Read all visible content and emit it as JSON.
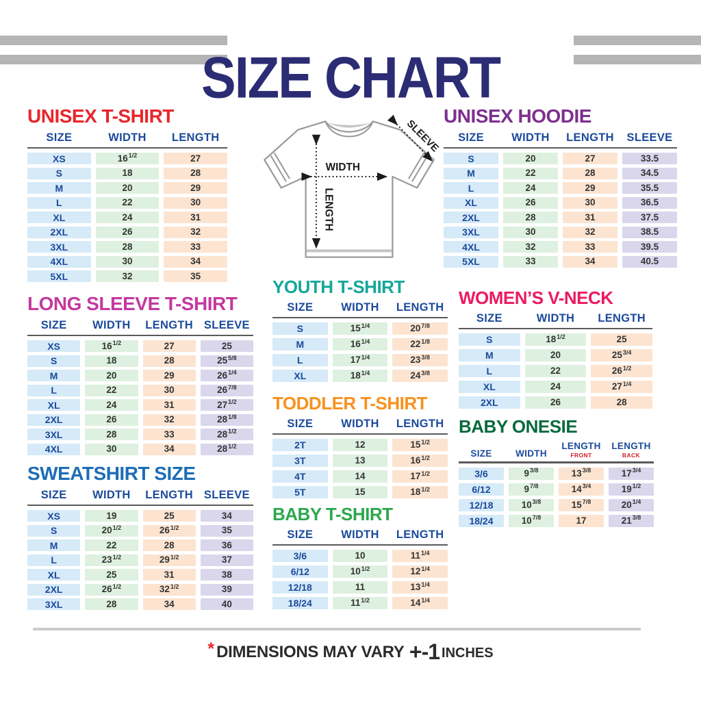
{
  "header": {
    "title": "SIZE CHART",
    "title_color": "#2b2c74",
    "stripe_color": "#b5b5b5"
  },
  "diagram": {
    "width_label": "WIDTH",
    "length_label": "LENGTH",
    "sleeve_label": "SLEEVE"
  },
  "palette": {
    "size": "#d6eaf8",
    "width": "#def0df",
    "length": "#fce4d1",
    "sleeve": "#dad6ec",
    "header_text": "#1b4a9b",
    "value_text": "#333333",
    "sub_header_red": "#d42027"
  },
  "footnote": {
    "asterisk": "*",
    "text": "DIMENSIONS MAY VARY",
    "tolerance": "+-1",
    "unit": "INCHES"
  },
  "tables": [
    {
      "id": "unisex-tshirt",
      "title": "UNISEX T-SHIRT",
      "title_color": "#e8262a",
      "columns": [
        {
          "label": "SIZE",
          "type": "size"
        },
        {
          "label": "WIDTH",
          "type": "width"
        },
        {
          "label": "LENGTH",
          "type": "length"
        }
      ],
      "rows": [
        [
          "XS",
          "16^1/2",
          "27"
        ],
        [
          "S",
          "18",
          "28"
        ],
        [
          "M",
          "20",
          "29"
        ],
        [
          "L",
          "22",
          "30"
        ],
        [
          "XL",
          "24",
          "31"
        ],
        [
          "2XL",
          "26",
          "32"
        ],
        [
          "3XL",
          "28",
          "33"
        ],
        [
          "4XL",
          "30",
          "34"
        ],
        [
          "5XL",
          "32",
          "35"
        ]
      ]
    },
    {
      "id": "unisex-hoodie",
      "title": "UNISEX HOODIE",
      "title_color": "#7d2f8d",
      "columns": [
        {
          "label": "SIZE",
          "type": "size"
        },
        {
          "label": "WIDTH",
          "type": "width"
        },
        {
          "label": "LENGTH",
          "type": "length"
        },
        {
          "label": "SLEEVE",
          "type": "sleeve"
        }
      ],
      "rows": [
        [
          "S",
          "20",
          "27",
          "33.5"
        ],
        [
          "M",
          "22",
          "28",
          "34.5"
        ],
        [
          "L",
          "24",
          "29",
          "35.5"
        ],
        [
          "XL",
          "26",
          "30",
          "36.5"
        ],
        [
          "2XL",
          "28",
          "31",
          "37.5"
        ],
        [
          "3XL",
          "30",
          "32",
          "38.5"
        ],
        [
          "4XL",
          "32",
          "33",
          "39.5"
        ],
        [
          "5XL",
          "33",
          "34",
          "40.5"
        ]
      ]
    },
    {
      "id": "long-sleeve-tshirt",
      "title": "LONG SLEEVE T-SHIRT",
      "title_color": "#c4399f",
      "columns": [
        {
          "label": "SIZE",
          "type": "size"
        },
        {
          "label": "WIDTH",
          "type": "width"
        },
        {
          "label": "LENGTH",
          "type": "length"
        },
        {
          "label": "SLEEVE",
          "type": "sleeve"
        }
      ],
      "rows": [
        [
          "XS",
          "16^1/2",
          "27",
          "25"
        ],
        [
          "S",
          "18",
          "28",
          "25^5/8"
        ],
        [
          "M",
          "20",
          "29",
          "26^1/4"
        ],
        [
          "L",
          "22",
          "30",
          "26^7/8"
        ],
        [
          "XL",
          "24",
          "31",
          "27^1/2"
        ],
        [
          "2XL",
          "26",
          "32",
          "28^1/8"
        ],
        [
          "3XL",
          "28",
          "33",
          "28^1/2"
        ],
        [
          "4XL",
          "30",
          "34",
          "28^1/2"
        ]
      ]
    },
    {
      "id": "youth-tshirt",
      "title": "YOUTH T-SHIRT",
      "title_color": "#16a79a",
      "columns": [
        {
          "label": "SIZE",
          "type": "size"
        },
        {
          "label": "WIDTH",
          "type": "width"
        },
        {
          "label": "LENGTH",
          "type": "length"
        }
      ],
      "rows": [
        [
          "S",
          "15^1/4",
          "20^7/8"
        ],
        [
          "M",
          "16^1/4",
          "22^1/8"
        ],
        [
          "L",
          "17^1/4",
          "23^3/8"
        ],
        [
          "XL",
          "18^1/4",
          "24^3/8"
        ]
      ]
    },
    {
      "id": "womens-vneck",
      "title": "WOMEN’S V-NECK",
      "title_color": "#ec1a62",
      "columns": [
        {
          "label": "SIZE",
          "type": "size"
        },
        {
          "label": "WIDTH",
          "type": "width"
        },
        {
          "label": "LENGTH",
          "type": "length"
        }
      ],
      "rows": [
        [
          "S",
          "18^1/2",
          "25"
        ],
        [
          "M",
          "20",
          "25^3/4"
        ],
        [
          "L",
          "22",
          "26^1/2"
        ],
        [
          "XL",
          "24",
          "27^1/4"
        ],
        [
          "2XL",
          "26",
          "28"
        ]
      ]
    },
    {
      "id": "toddler-tshirt",
      "title": "TODDLER T-SHIRT",
      "title_color": "#f6921e",
      "columns": [
        {
          "label": "SIZE",
          "type": "size"
        },
        {
          "label": "WIDTH",
          "type": "width"
        },
        {
          "label": "LENGTH",
          "type": "length"
        }
      ],
      "rows": [
        [
          "2T",
          "12",
          "15^1/2"
        ],
        [
          "3T",
          "13",
          "16^1/2"
        ],
        [
          "4T",
          "14",
          "17^1/2"
        ],
        [
          "5T",
          "15",
          "18^1/2"
        ]
      ]
    },
    {
      "id": "sweatshirt",
      "title": "SWEATSHIRT SIZE",
      "title_color": "#1d6db6",
      "columns": [
        {
          "label": "SIZE",
          "type": "size"
        },
        {
          "label": "WIDTH",
          "type": "width"
        },
        {
          "label": "LENGTH",
          "type": "length"
        },
        {
          "label": "SLEEVE",
          "type": "sleeve"
        }
      ],
      "rows": [
        [
          "XS",
          "19",
          "25",
          "34"
        ],
        [
          "S",
          "20^1/2",
          "26^1/2",
          "35"
        ],
        [
          "M",
          "22",
          "28",
          "36"
        ],
        [
          "L",
          "23^1/2",
          "29^1/2",
          "37"
        ],
        [
          "XL",
          "25",
          "31",
          "38"
        ],
        [
          "2XL",
          "26^1/2",
          "32^1/2",
          "39"
        ],
        [
          "3XL",
          "28",
          "34",
          "40"
        ]
      ]
    },
    {
      "id": "baby-tshirt",
      "title": "BABY T-SHIRT",
      "title_color": "#2ca84d",
      "columns": [
        {
          "label": "SIZE",
          "type": "size"
        },
        {
          "label": "WIDTH",
          "type": "width"
        },
        {
          "label": "LENGTH",
          "type": "length"
        }
      ],
      "rows": [
        [
          "3/6",
          "10",
          "11^1/4"
        ],
        [
          "6/12",
          "10^1/2",
          "12^1/4"
        ],
        [
          "12/18",
          "11",
          "13^1/4"
        ],
        [
          "18/24",
          "11^1/2",
          "14^1/4"
        ]
      ]
    },
    {
      "id": "baby-onesie",
      "title": "BABY ONESIE",
      "title_color": "#076a3e",
      "columns": [
        {
          "label": "SIZE",
          "type": "size"
        },
        {
          "label": "WIDTH",
          "type": "width"
        },
        {
          "label": "LENGTH",
          "sub": "FRONT",
          "type": "length"
        },
        {
          "label": "LENGTH",
          "sub": "BACK",
          "type": "sleeve"
        }
      ],
      "rows": [
        [
          "3/6",
          "9^3/8",
          "13^3/8",
          "17^3/4"
        ],
        [
          "6/12",
          "9^7/8",
          "14^3/4",
          "19^1/2"
        ],
        [
          "12/18",
          "10^3/8",
          "15^7/8",
          "20^1/4"
        ],
        [
          "18/24",
          "10^7/8",
          "17",
          "21^3/8"
        ]
      ]
    }
  ]
}
